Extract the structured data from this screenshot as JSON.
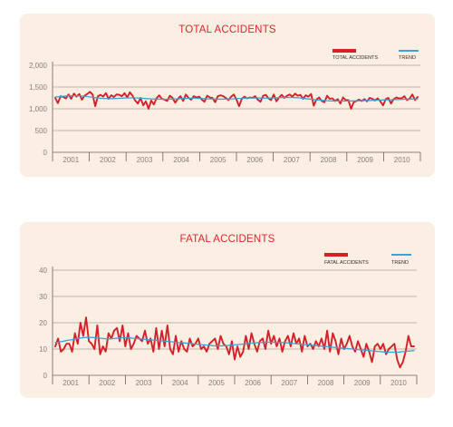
{
  "chart_data": [
    {
      "type": "line",
      "title": "TOTAL ACCIDENTS",
      "xlabel": "",
      "ylabel": "",
      "ylim": [
        0,
        2000
      ],
      "yticks": [
        "0",
        "500",
        "1,000",
        "1,500",
        "2,000"
      ],
      "ytick_values": [
        0,
        500,
        1000,
        1500,
        2000
      ],
      "x_labels": [
        "2001",
        "2002",
        "2003",
        "2004",
        "2005",
        "2006",
        "2007",
        "2008",
        "2009",
        "2010"
      ],
      "grid": true,
      "legend_position": "top-right",
      "series": [
        {
          "name": "TOTAL ACCIDENTS",
          "color": "#d71f26",
          "values": [
            1250,
            1130,
            1290,
            1270,
            1240,
            1330,
            1230,
            1350,
            1280,
            1340,
            1210,
            1300,
            1340,
            1390,
            1330,
            1060,
            1290,
            1320,
            1280,
            1360,
            1230,
            1310,
            1270,
            1330,
            1320,
            1290,
            1360,
            1260,
            1380,
            1300,
            1190,
            1120,
            1250,
            1080,
            1170,
            1000,
            1190,
            1100,
            1240,
            1310,
            1230,
            1210,
            1180,
            1300,
            1250,
            1140,
            1230,
            1290,
            1180,
            1330,
            1250,
            1210,
            1290,
            1260,
            1280,
            1210,
            1160,
            1300,
            1260,
            1250,
            1150,
            1290,
            1310,
            1290,
            1250,
            1200,
            1280,
            1330,
            1210,
            1060,
            1230,
            1280,
            1240,
            1260,
            1250,
            1290,
            1210,
            1160,
            1300,
            1320,
            1240,
            1200,
            1330,
            1170,
            1260,
            1320,
            1250,
            1300,
            1330,
            1280,
            1350,
            1300,
            1320,
            1230,
            1310,
            1280,
            1340,
            1070,
            1210,
            1260,
            1180,
            1150,
            1300,
            1230,
            1240,
            1180,
            1220,
            1120,
            1260,
            1200,
            1200,
            1000,
            1150,
            1180,
            1210,
            1180,
            1220,
            1170,
            1250,
            1230,
            1190,
            1240,
            1170,
            1080,
            1220,
            1250,
            1120,
            1220,
            1260,
            1240,
            1240,
            1290,
            1200,
            1240,
            1330,
            1200,
            1270
          ]
        },
        {
          "name": "TREND",
          "color": "#3aa3d6",
          "values": [
            1270,
            1275,
            1282,
            1288,
            1293,
            1297,
            1300,
            1301,
            1300,
            1297,
            1293,
            1287,
            1280,
            1272,
            1263,
            1255,
            1248,
            1242,
            1238,
            1235,
            1234,
            1234,
            1236,
            1238,
            1241,
            1244,
            1247,
            1249,
            1250,
            1250,
            1249,
            1247,
            1244,
            1240,
            1236,
            1232,
            1228,
            1225,
            1222,
            1220,
            1219,
            1219,
            1220,
            1222,
            1224,
            1227,
            1230,
            1233,
            1236,
            1238,
            1240,
            1241,
            1241,
            1240,
            1238,
            1236,
            1233,
            1230,
            1227,
            1224,
            1222,
            1221,
            1220,
            1221,
            1222,
            1224,
            1227,
            1230,
            1234,
            1237,
            1240,
            1243,
            1245,
            1247,
            1248,
            1248,
            1247,
            1246,
            1245,
            1245,
            1246,
            1248,
            1250,
            1253,
            1256,
            1258,
            1260,
            1261,
            1261,
            1260,
            1257,
            1253,
            1247,
            1241,
            1234,
            1226,
            1219,
            1212,
            1205,
            1199,
            1194,
            1190,
            1187,
            1184,
            1182,
            1180,
            1179,
            1178,
            1178,
            1178,
            1179,
            1180,
            1181,
            1183,
            1184,
            1186,
            1188,
            1190,
            1192,
            1194,
            1196,
            1198,
            1200,
            1202,
            1204,
            1206,
            1208,
            1210,
            1212,
            1214,
            1216,
            1218,
            1220,
            1222,
            1224,
            1226,
            1228
          ]
        }
      ]
    },
    {
      "type": "line",
      "title": "FATAL ACCIDENTS",
      "xlabel": "",
      "ylabel": "",
      "ylim": [
        0,
        40
      ],
      "yticks": [
        "0",
        "10",
        "20",
        "30",
        "40"
      ],
      "ytick_values": [
        0,
        10,
        20,
        30,
        40
      ],
      "x_labels": [
        "2001",
        "2002",
        "2003",
        "2004",
        "2005",
        "2006",
        "2007",
        "2008",
        "2009",
        "2010"
      ],
      "grid": true,
      "legend_position": "top-right",
      "series": [
        {
          "name": "FATAL ACCIDENTS",
          "color": "#d71f26",
          "values": [
            11,
            14,
            9,
            10,
            12,
            12,
            9,
            16,
            12,
            20,
            15,
            22,
            13,
            12,
            10,
            19,
            8,
            11,
            9,
            16,
            14,
            17,
            18,
            13,
            19,
            11,
            16,
            10,
            12,
            15,
            14,
            13,
            17,
            12,
            14,
            9,
            18,
            10,
            17,
            11,
            19,
            10,
            8,
            15,
            9,
            13,
            10,
            9,
            14,
            11,
            12,
            14,
            10,
            11,
            9,
            12,
            13,
            14,
            10,
            15,
            12,
            11,
            8,
            13,
            6,
            11,
            7,
            9,
            15,
            10,
            16,
            12,
            9,
            13,
            14,
            10,
            17,
            12,
            15,
            11,
            14,
            9,
            13,
            15,
            11,
            16,
            12,
            14,
            9,
            15,
            11,
            12,
            10,
            13,
            11,
            14,
            10,
            17,
            9,
            16,
            13,
            8,
            14,
            10,
            12,
            15,
            11,
            9,
            13,
            10,
            7,
            12,
            9,
            5,
            11,
            12,
            10,
            12,
            8,
            10,
            11,
            12,
            6,
            3,
            5,
            9,
            15,
            11,
            11
          ]
        },
        {
          "name": "TREND",
          "color": "#3aa3d6",
          "values": [
            12.5,
            12.6,
            12.8,
            13.0,
            13.2,
            13.4,
            13.6,
            13.8,
            14.0,
            14.2,
            14.3,
            14.4,
            14.4,
            14.4,
            14.3,
            14.2,
            14.1,
            14.0,
            13.9,
            13.9,
            13.9,
            14.0,
            14.1,
            14.2,
            14.3,
            14.3,
            14.3,
            14.2,
            14.1,
            14.0,
            13.9,
            13.8,
            13.7,
            13.6,
            13.5,
            13.4,
            13.3,
            13.2,
            13.1,
            13.0,
            12.9,
            12.8,
            12.7,
            12.6,
            12.5,
            12.4,
            12.3,
            12.2,
            12.1,
            12.0,
            11.9,
            11.8,
            11.7,
            11.6,
            11.5,
            11.4,
            11.3,
            11.2,
            11.2,
            11.2,
            11.2,
            11.3,
            11.4,
            11.5,
            11.6,
            11.7,
            11.8,
            11.9,
            12.0,
            12.1,
            12.2,
            12.3,
            12.4,
            12.5,
            12.5,
            12.6,
            12.6,
            12.6,
            12.6,
            12.6,
            12.5,
            12.5,
            12.4,
            12.3,
            12.2,
            12.1,
            12.0,
            11.9,
            11.8,
            11.7,
            11.6,
            11.5,
            11.4,
            11.3,
            11.2,
            11.1,
            11.0,
            10.9,
            10.8,
            10.7,
            10.6,
            10.5,
            10.4,
            10.3,
            10.2,
            10.1,
            10.0,
            9.9,
            9.8,
            9.7,
            9.6,
            9.5,
            9.4,
            9.3,
            9.2,
            9.1,
            9.0,
            8.9,
            8.8,
            8.8,
            8.8,
            8.8,
            8.8,
            8.9,
            9.0,
            9.1,
            9.2,
            9.3,
            9.4
          ]
        }
      ]
    }
  ]
}
